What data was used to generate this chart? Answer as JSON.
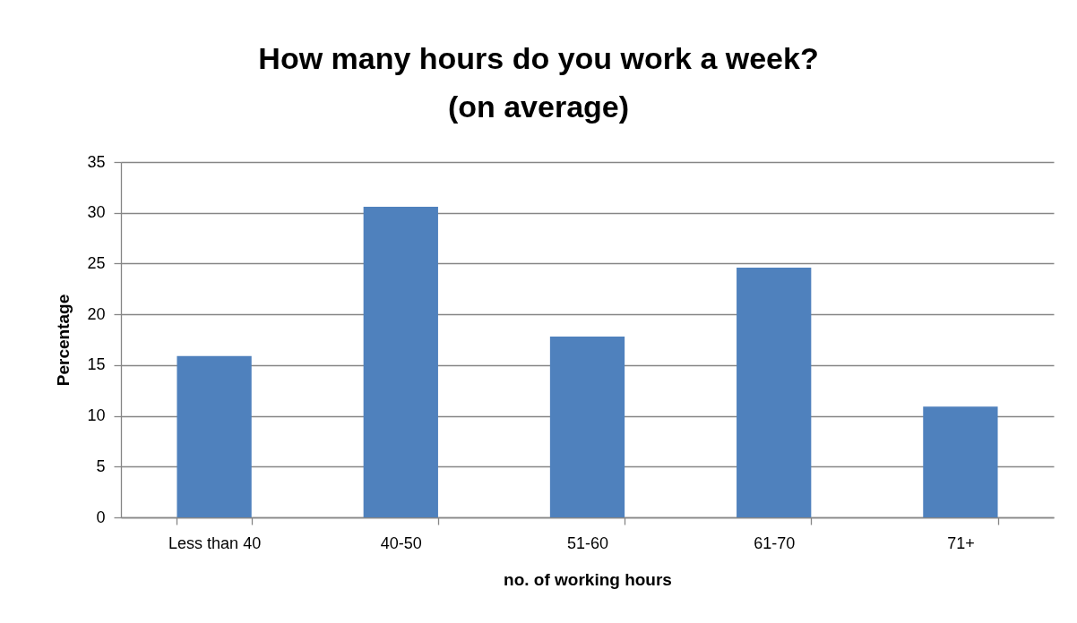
{
  "chart_data": {
    "type": "bar",
    "title": "How many hours do you work a week?\n(on average)",
    "xlabel": "no. of working hours",
    "ylabel": "Percentage",
    "categories": [
      "Less than 40",
      "40-50",
      "51-60",
      "61-70",
      "71+"
    ],
    "values": [
      15.9,
      30.6,
      17.8,
      24.6,
      10.9
    ],
    "color": "#4f81bd",
    "ylim": [
      0,
      35
    ],
    "yticks": [
      0,
      5,
      10,
      15,
      20,
      25,
      30,
      35
    ],
    "grid": "y"
  }
}
